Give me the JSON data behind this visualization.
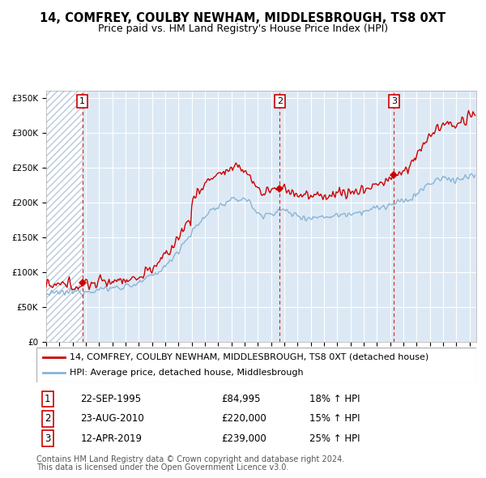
{
  "title": "14, COMFREY, COULBY NEWHAM, MIDDLESBROUGH, TS8 0XT",
  "subtitle": "Price paid vs. HM Land Registry's House Price Index (HPI)",
  "ylim": [
    0,
    360000
  ],
  "yticks": [
    0,
    50000,
    100000,
    150000,
    200000,
    250000,
    300000,
    350000
  ],
  "xlim_start": 1993.0,
  "xlim_end": 2025.5,
  "hatch_end_year": 1995.75,
  "bg_color": "#dce9f5",
  "grid_color": "#ffffff",
  "hatch_color": "#b8c8db",
  "sale_color": "#cc0000",
  "hpi_color": "#8ab4d4",
  "vline_color": "#cc0000",
  "sales": [
    {
      "num": 1,
      "date_dec": 1995.73,
      "price": 84995
    },
    {
      "num": 2,
      "date_dec": 2010.645,
      "price": 220000
    },
    {
      "num": 3,
      "date_dec": 2019.28,
      "price": 239000
    }
  ],
  "legend_line1": "14, COMFREY, COULBY NEWHAM, MIDDLESBROUGH, TS8 0XT (detached house)",
  "legend_line2": "HPI: Average price, detached house, Middlesbrough",
  "table_rows": [
    {
      "num": "1",
      "date": "22-SEP-1995",
      "price": "£84,995",
      "hpi": "18% ↑ HPI"
    },
    {
      "num": "2",
      "date": "23-AUG-2010",
      "price": "£220,000",
      "hpi": "15% ↑ HPI"
    },
    {
      "num": "3",
      "date": "12-APR-2019",
      "price": "£239,000",
      "hpi": "25% ↑ HPI"
    }
  ],
  "footnote1": "Contains HM Land Registry data © Crown copyright and database right 2024.",
  "footnote2": "This data is licensed under the Open Government Licence v3.0.",
  "title_fontsize": 10.5,
  "subtitle_fontsize": 9,
  "tick_fontsize": 7.5,
  "legend_fontsize": 8,
  "table_fontsize": 8.5,
  "footnote_fontsize": 7
}
